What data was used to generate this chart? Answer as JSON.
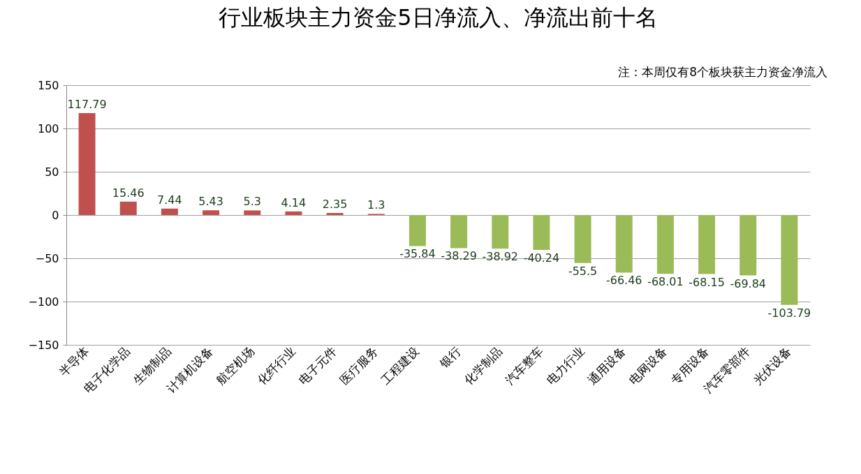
{
  "chart_data": {
    "type": "bar",
    "title": "行业板块主力资金5日净流入、净流出前十名",
    "annotations": [
      "注：本周仅有8个板块获主力资金净流入"
    ],
    "categories": [
      "半导体",
      "电子化学品",
      "生物制品",
      "计算机设备",
      "航空机场",
      "化纤行业",
      "电子元件",
      "医疗服务",
      "工程建设",
      "银行",
      "化学制品",
      "汽车整车",
      "电力行业",
      "通用设备",
      "电网设备",
      "专用设备",
      "汽车零部件",
      "光伏设备"
    ],
    "values": [
      117.79,
      15.46,
      7.44,
      5.43,
      5.3,
      4.14,
      2.35,
      1.3,
      -35.84,
      -38.29,
      -38.92,
      -40.24,
      -55.5,
      -66.46,
      -68.01,
      -68.15,
      -69.84,
      -103.79
    ],
    "colors": [
      "#c0504d",
      "#c0504d",
      "#c0504d",
      "#c0504d",
      "#c0504d",
      "#c0504d",
      "#c0504d",
      "#c0504d",
      "#9bbb59",
      "#9bbb59",
      "#9bbb59",
      "#9bbb59",
      "#9bbb59",
      "#9bbb59",
      "#9bbb59",
      "#9bbb59",
      "#9bbb59",
      "#9bbb59"
    ],
    "ylim": [
      -150,
      150
    ],
    "yticks": [
      -150,
      -100,
      -50,
      0,
      50,
      100,
      150
    ],
    "grid": "y",
    "data_labels": true
  }
}
